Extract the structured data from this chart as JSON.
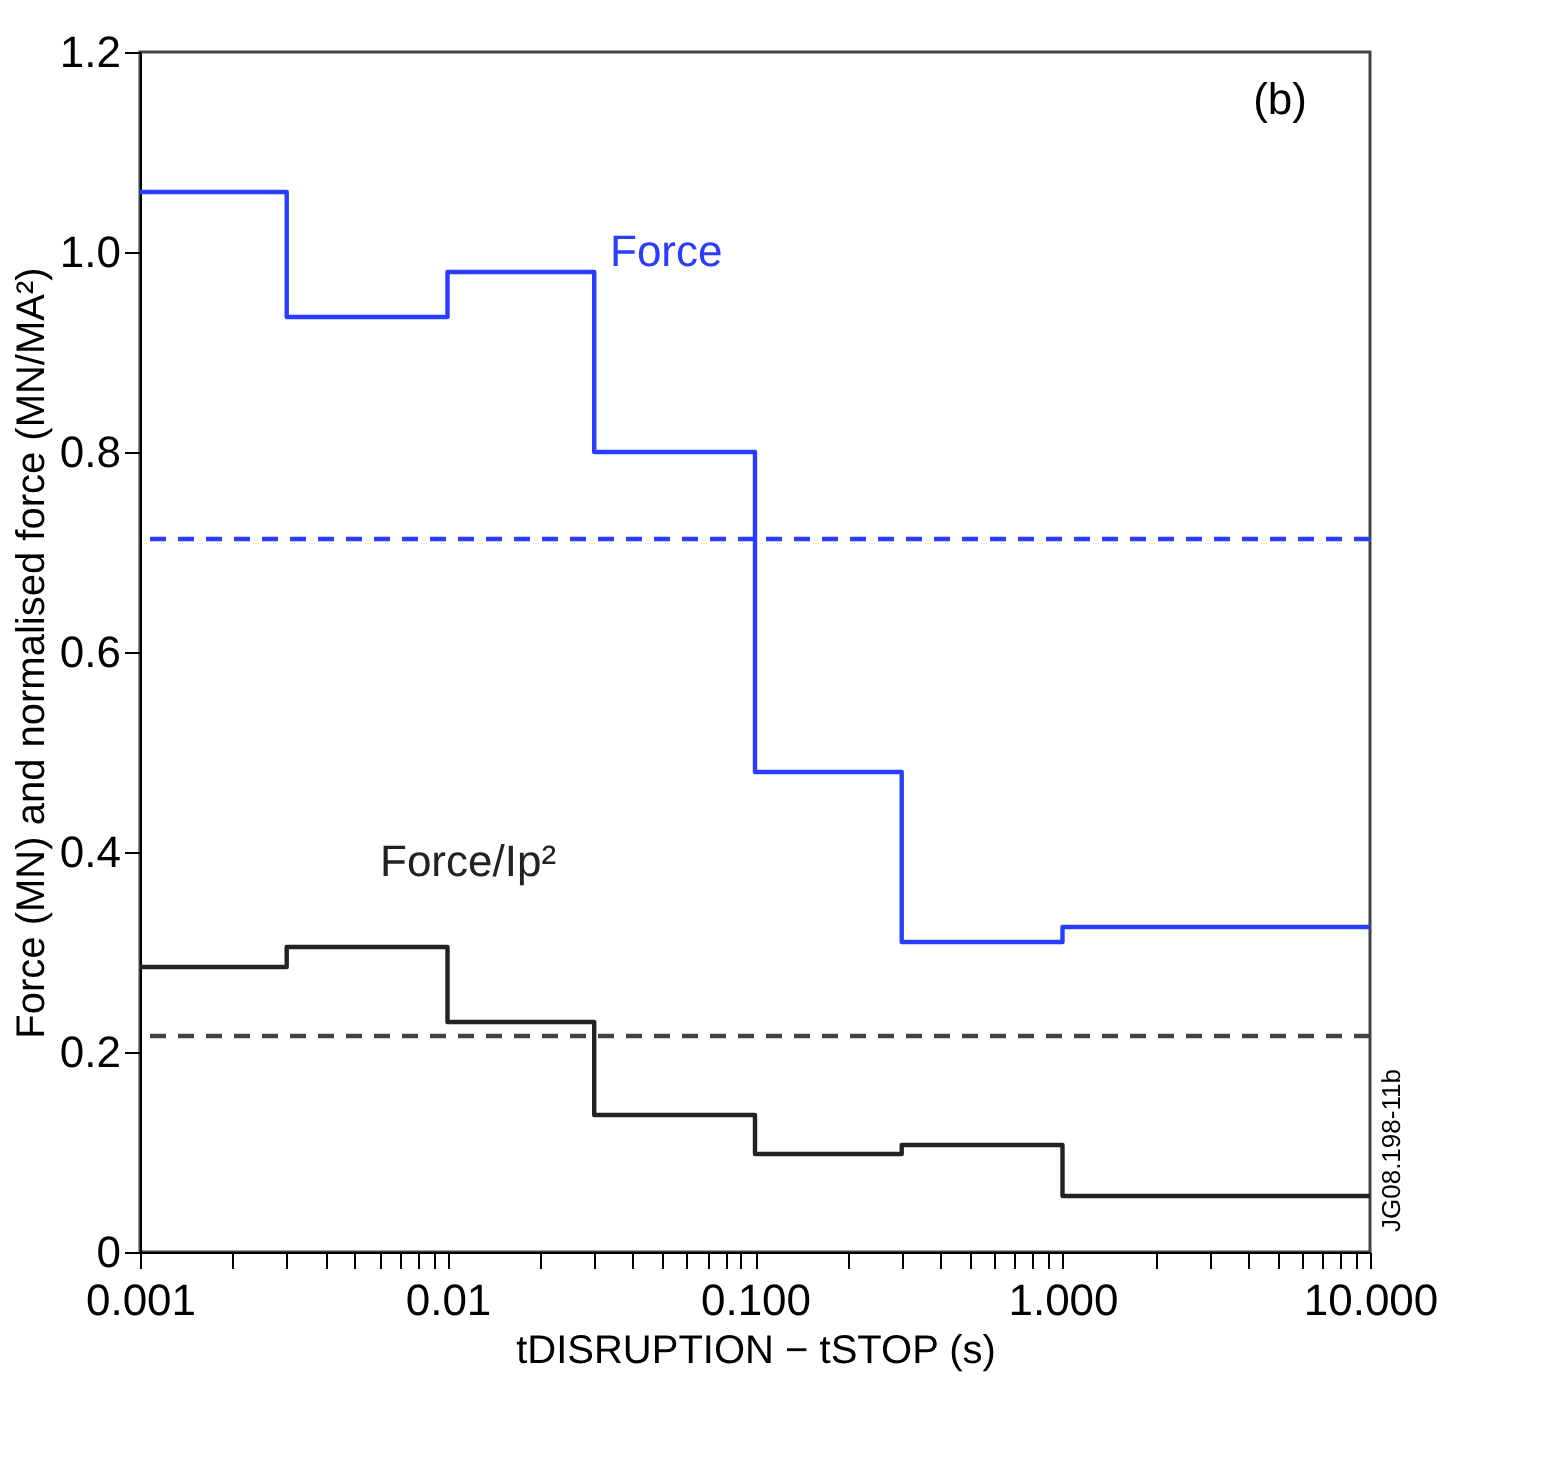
{
  "chart_data": {
    "type": "step",
    "xlabel": "tDISRUPTION − tSTOP (s)",
    "ylabel": "Force (MN) and normalised force (MN/MA²)",
    "x": [
      0.001,
      0.003,
      0.01,
      0.03,
      0.1,
      0.3,
      1,
      10
    ],
    "series": [
      {
        "name": "Force",
        "color": "#2a3cff",
        "values": [
          1.06,
          0.935,
          0.98,
          0.8,
          0.48,
          0.31,
          0.325,
          0.325
        ]
      },
      {
        "name": "Force/Ip²",
        "color": "#222222",
        "values": [
          0.285,
          0.305,
          0.23,
          0.137,
          0.098,
          0.107,
          0.056,
          0.056
        ]
      }
    ],
    "ref_lines": [
      {
        "axis": "y",
        "value": 0.713,
        "color": "#2a3cff",
        "line_style": "dashed"
      },
      {
        "axis": "y",
        "value": 0.216,
        "color": "#444444",
        "line_style": "dashed"
      }
    ],
    "log": "x",
    "xlim": [
      0.001,
      10
    ],
    "xticks": [
      {
        "value": 0.001,
        "label": "0.001"
      },
      {
        "value": 0.002,
        "label": null
      },
      {
        "value": 0.003,
        "label": null
      },
      {
        "value": 0.004,
        "label": null
      },
      {
        "value": 0.005,
        "label": null
      },
      {
        "value": 0.006,
        "label": null
      },
      {
        "value": 0.007,
        "label": null
      },
      {
        "value": 0.008,
        "label": null
      },
      {
        "value": 0.009,
        "label": null
      },
      {
        "value": 0.01,
        "label": "0.01"
      },
      {
        "value": 0.02,
        "label": null
      },
      {
        "value": 0.03,
        "label": null
      },
      {
        "value": 0.04,
        "label": null
      },
      {
        "value": 0.05,
        "label": null
      },
      {
        "value": 0.06,
        "label": null
      },
      {
        "value": 0.07,
        "label": null
      },
      {
        "value": 0.08,
        "label": null
      },
      {
        "value": 0.09,
        "label": null
      },
      {
        "value": 0.1,
        "label": "0.100"
      },
      {
        "value": 0.2,
        "label": null
      },
      {
        "value": 0.3,
        "label": null
      },
      {
        "value": 0.4,
        "label": null
      },
      {
        "value": 0.5,
        "label": null
      },
      {
        "value": 0.6,
        "label": null
      },
      {
        "value": 0.7,
        "label": null
      },
      {
        "value": 0.8,
        "label": null
      },
      {
        "value": 0.9,
        "label": null
      },
      {
        "value": 1,
        "label": "1.000"
      },
      {
        "value": 2,
        "label": null
      },
      {
        "value": 3,
        "label": null
      },
      {
        "value": 4,
        "label": null
      },
      {
        "value": 5,
        "label": null
      },
      {
        "value": 6,
        "label": null
      },
      {
        "value": 7,
        "label": null
      },
      {
        "value": 8,
        "label": null
      },
      {
        "value": 9,
        "label": null
      },
      {
        "value": 10,
        "label": "10.000"
      }
    ],
    "ylim": [
      0,
      1.2
    ],
    "yticks": [
      0,
      0.2,
      0.4,
      0.6,
      0.8,
      {
        "value": 1,
        "label": "1.0"
      },
      1.2
    ],
    "grid": false,
    "line_style": "solid",
    "marker": "none",
    "annotations": [
      "(b)",
      "JG08.198-11b"
    ]
  }
}
